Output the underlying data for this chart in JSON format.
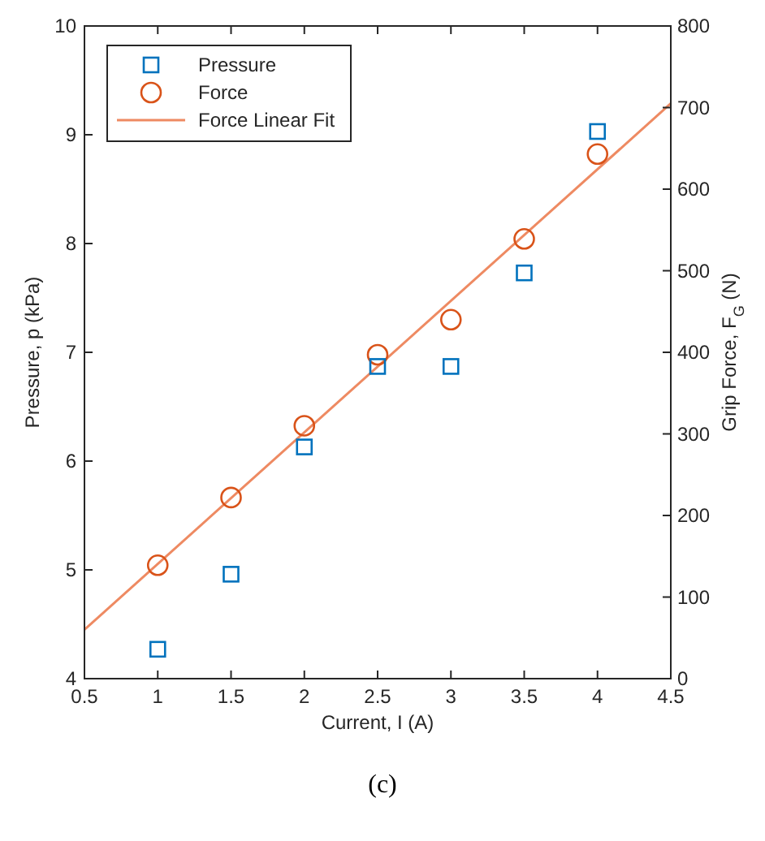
{
  "chart_data": {
    "type": "scatter",
    "xlabel": "Current, I (A)",
    "ylabel": "Pressure, p (kPa)",
    "y2label": "Grip Force, F$_{G}$ (N)",
    "x": [
      1,
      1.5,
      2,
      2.5,
      3,
      3.5,
      4
    ],
    "series": [
      {
        "name": "Pressure",
        "color": "#0072bd",
        "marker": "square",
        "values": [
          4.27,
          4.96,
          6.13,
          6.87,
          6.87,
          7.73,
          9.03
        ]
      },
      {
        "name": "Force",
        "color": "#d95319",
        "marker": "circle",
        "axis": "y2",
        "values": [
          139,
          222,
          310,
          397,
          440,
          539,
          643
        ]
      },
      {
        "name": "Force Linear Fit",
        "type": "line",
        "color": "#ee8a62",
        "marker": "none",
        "line_style": "solid",
        "axis": "y2",
        "x": [
          0.5,
          4.5
        ],
        "values": [
          60,
          705
        ]
      }
    ],
    "xlim": [
      0.5,
      4.5
    ],
    "xticks": [
      0.5,
      1,
      1.5,
      2,
      2.5,
      3,
      3.5,
      4,
      4.5
    ],
    "ylim": [
      4,
      10
    ],
    "yticks": [
      4,
      5,
      6,
      7,
      8,
      9,
      10
    ],
    "y2lim": [
      0,
      800
    ],
    "y2ticks": [
      0,
      100,
      200,
      300,
      400,
      500,
      600,
      700,
      800
    ],
    "grid": false,
    "legend": "top left",
    "annotations": [
      "(c)"
    ]
  }
}
